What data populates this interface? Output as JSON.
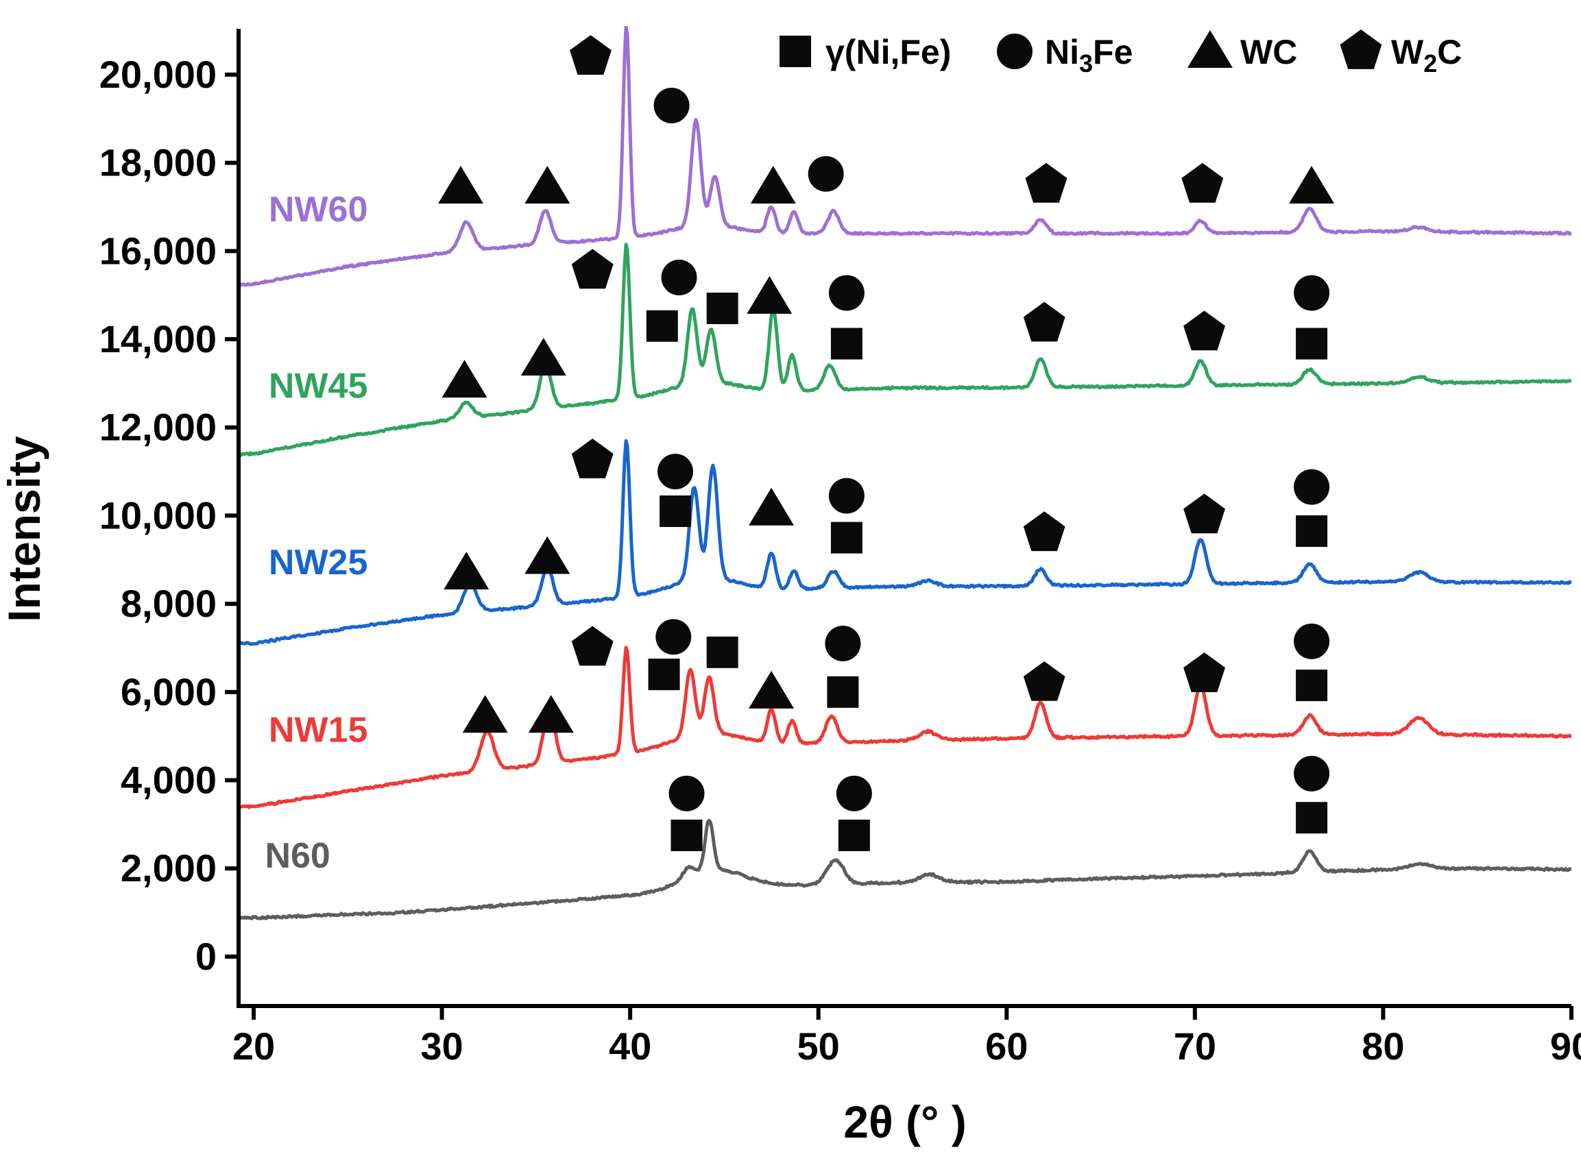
{
  "figure": {
    "background": "#ffffff",
    "axis_color": "#000000",
    "marker_color": "#0a0a0a"
  },
  "chart_data": {
    "type": "line",
    "title": "",
    "xlabel": "2θ (° )",
    "ylabel": "Intensity",
    "xlim": [
      19.2,
      90
    ],
    "ylim": [
      -1120,
      21040
    ],
    "grid": false,
    "legend_position": "top",
    "xticks": [
      20,
      30,
      40,
      50,
      60,
      70,
      80,
      90
    ],
    "xtick_labels": [
      "20",
      "30",
      "40",
      "50",
      "60",
      "70",
      "80",
      "90"
    ],
    "yticks": [
      0,
      2000,
      4000,
      6000,
      8000,
      10000,
      12000,
      14000,
      16000,
      18000,
      20000
    ],
    "ytick_labels": [
      "0",
      "2,000",
      "4,000",
      "6,000",
      "8,000",
      "10,000",
      "12,000",
      "14,000",
      "16,000",
      "18,000",
      "20,000"
    ],
    "legend": [
      {
        "symbol": "square",
        "pre": "γ(Ni,Fe)",
        "sub": "",
        "post": ""
      },
      {
        "symbol": "circle",
        "pre": "Ni",
        "sub": "3",
        "post": "Fe"
      },
      {
        "symbol": "triangle",
        "pre": "WC",
        "sub": "",
        "post": ""
      },
      {
        "symbol": "pentagon",
        "pre": "W",
        "sub": "2",
        "post": "C"
      }
    ],
    "series": [
      {
        "name": "N60",
        "color": "#5d5d5d",
        "label_xy": [
          20.6,
          2300
        ],
        "noise": 40,
        "baseline": [
          [
            20,
            880
          ],
          [
            28,
            1000
          ],
          [
            36,
            1250
          ],
          [
            42,
            1450
          ],
          [
            48,
            1600
          ],
          [
            54,
            1680
          ],
          [
            60,
            1700
          ],
          [
            66,
            1780
          ],
          [
            72,
            1850
          ],
          [
            78,
            1950
          ],
          [
            84,
            2000
          ],
          [
            90,
            1980
          ]
        ],
        "peaks": [
          [
            44.5,
            450,
            1.6
          ],
          [
            44.2,
            1150,
            0.22
          ],
          [
            43.1,
            250,
            0.3
          ],
          [
            50.9,
            550,
            0.45
          ],
          [
            55.9,
            180,
            0.5
          ],
          [
            76.1,
            480,
            0.35
          ],
          [
            81.9,
            120,
            0.6
          ]
        ]
      },
      {
        "name": "NW15",
        "color": "#ee3a35",
        "label_xy": [
          20.8,
          5150
        ],
        "noise": 40,
        "baseline": [
          [
            20,
            3400
          ],
          [
            25,
            3750
          ],
          [
            30,
            4100
          ],
          [
            35,
            4350
          ],
          [
            40,
            4600
          ],
          [
            45,
            4750
          ],
          [
            50,
            4850
          ],
          [
            55,
            4900
          ],
          [
            60,
            4950
          ],
          [
            70,
            5000
          ],
          [
            80,
            5050
          ],
          [
            90,
            5000
          ]
        ],
        "peaks": [
          [
            32.4,
            900,
            0.35
          ],
          [
            35.7,
            1250,
            0.3
          ],
          [
            44,
            350,
            1.8
          ],
          [
            39.8,
            2400,
            0.18
          ],
          [
            43.2,
            1500,
            0.25
          ],
          [
            44.2,
            1250,
            0.25
          ],
          [
            47.5,
            750,
            0.22
          ],
          [
            48.6,
            500,
            0.22
          ],
          [
            50.7,
            600,
            0.3
          ],
          [
            55.8,
            200,
            0.45
          ],
          [
            61.8,
            800,
            0.3
          ],
          [
            70.3,
            1150,
            0.3
          ],
          [
            76.1,
            430,
            0.35
          ],
          [
            81.9,
            380,
            0.5
          ]
        ]
      },
      {
        "name": "NW25",
        "color": "#1765cf",
        "label_xy": [
          20.8,
          8950
        ],
        "noise": 38,
        "baseline": [
          [
            20,
            7100
          ],
          [
            25,
            7450
          ],
          [
            30,
            7750
          ],
          [
            35,
            7950
          ],
          [
            40,
            8150
          ],
          [
            45,
            8250
          ],
          [
            50,
            8350
          ],
          [
            55,
            8400
          ],
          [
            60,
            8400
          ],
          [
            70,
            8450
          ],
          [
            80,
            8500
          ],
          [
            90,
            8480
          ]
        ],
        "peaks": [
          [
            31.5,
            650,
            0.35
          ],
          [
            35.6,
            850,
            0.3
          ],
          [
            44,
            350,
            1.8
          ],
          [
            39.8,
            3550,
            0.18
          ],
          [
            43.4,
            2100,
            0.25
          ],
          [
            44.4,
            2550,
            0.25
          ],
          [
            47.5,
            800,
            0.22
          ],
          [
            48.7,
            420,
            0.22
          ],
          [
            50.8,
            380,
            0.3
          ],
          [
            55.8,
            120,
            0.45
          ],
          [
            61.8,
            380,
            0.3
          ],
          [
            70.3,
            1000,
            0.3
          ],
          [
            76.1,
            420,
            0.35
          ],
          [
            81.9,
            220,
            0.5
          ]
        ]
      },
      {
        "name": "NW45",
        "color": "#2fa45e",
        "label_xy": [
          20.8,
          12950
        ],
        "noise": 38,
        "baseline": [
          [
            20,
            11400
          ],
          [
            25,
            11800
          ],
          [
            30,
            12150
          ],
          [
            35,
            12400
          ],
          [
            40,
            12650
          ],
          [
            45,
            12750
          ],
          [
            50,
            12850
          ],
          [
            55,
            12900
          ],
          [
            60,
            12900
          ],
          [
            70,
            12950
          ],
          [
            80,
            13000
          ],
          [
            90,
            13050
          ]
        ],
        "peaks": [
          [
            31.3,
            350,
            0.35
          ],
          [
            35.5,
            1000,
            0.3
          ],
          [
            44,
            300,
            1.8
          ],
          [
            39.8,
            3500,
            0.18
          ],
          [
            43.3,
            1700,
            0.25
          ],
          [
            44.3,
            1200,
            0.25
          ],
          [
            47.6,
            1850,
            0.22
          ],
          [
            48.6,
            800,
            0.22
          ],
          [
            50.6,
            550,
            0.3
          ],
          [
            61.8,
            650,
            0.3
          ],
          [
            70.3,
            550,
            0.3
          ],
          [
            76.1,
            330,
            0.35
          ],
          [
            81.9,
            130,
            0.5
          ]
        ]
      },
      {
        "name": "NW60",
        "color": "#9d6fd6",
        "label_xy": [
          20.8,
          16950
        ],
        "noise": 36,
        "baseline": [
          [
            20,
            15250
          ],
          [
            25,
            15650
          ],
          [
            30,
            15950
          ],
          [
            35,
            16150
          ],
          [
            40,
            16300
          ],
          [
            45,
            16350
          ],
          [
            50,
            16400
          ],
          [
            60,
            16400
          ],
          [
            70,
            16400
          ],
          [
            80,
            16450
          ],
          [
            90,
            16400
          ]
        ],
        "peaks": [
          [
            31.3,
            650,
            0.35
          ],
          [
            35.5,
            750,
            0.3
          ],
          [
            44,
            250,
            1.8
          ],
          [
            39.8,
            4800,
            0.17
          ],
          [
            43.5,
            2400,
            0.25
          ],
          [
            44.5,
            1100,
            0.25
          ],
          [
            47.5,
            600,
            0.22
          ],
          [
            48.7,
            500,
            0.22
          ],
          [
            50.8,
            500,
            0.3
          ],
          [
            61.8,
            320,
            0.3
          ],
          [
            70.3,
            280,
            0.3
          ],
          [
            76.1,
            520,
            0.35
          ],
          [
            81.9,
            100,
            0.5
          ]
        ]
      }
    ],
    "phase_markers": [
      [
        "triangle",
        31.0,
        17450
      ],
      [
        "triangle",
        35.6,
        17450
      ],
      [
        "pentagon",
        37.9,
        20400
      ],
      [
        "circle",
        42.2,
        19300
      ],
      [
        "triangle",
        47.6,
        17450
      ],
      [
        "circle",
        50.4,
        17750
      ],
      [
        "pentagon",
        62.1,
        17500
      ],
      [
        "pentagon",
        70.4,
        17500
      ],
      [
        "triangle",
        76.2,
        17450
      ],
      [
        "triangle",
        31.2,
        13050
      ],
      [
        "triangle",
        35.4,
        13550
      ],
      [
        "pentagon",
        38.0,
        15550
      ],
      [
        "square",
        41.7,
        14300
      ],
      [
        "circle",
        42.6,
        15400
      ],
      [
        "square",
        44.9,
        14700
      ],
      [
        "triangle",
        47.4,
        14950
      ],
      [
        "circle",
        51.5,
        15050
      ],
      [
        "square",
        51.5,
        13900
      ],
      [
        "pentagon",
        62.0,
        14350
      ],
      [
        "pentagon",
        70.5,
        14150
      ],
      [
        "circle",
        76.2,
        15050
      ],
      [
        "square",
        76.2,
        13900
      ],
      [
        "triangle",
        31.3,
        8700
      ],
      [
        "triangle",
        35.6,
        9050
      ],
      [
        "pentagon",
        38.0,
        11250
      ],
      [
        "circle",
        42.4,
        11000
      ],
      [
        "square",
        42.4,
        10100
      ],
      [
        "triangle",
        47.5,
        10150
      ],
      [
        "circle",
        51.5,
        10450
      ],
      [
        "square",
        51.5,
        9500
      ],
      [
        "pentagon",
        62.0,
        9600
      ],
      [
        "pentagon",
        70.5,
        10000
      ],
      [
        "circle",
        76.2,
        10650
      ],
      [
        "square",
        76.2,
        9650
      ],
      [
        "triangle",
        32.3,
        5450
      ],
      [
        "triangle",
        35.8,
        5450
      ],
      [
        "pentagon",
        38.0,
        7000
      ],
      [
        "square",
        41.8,
        6400
      ],
      [
        "circle",
        42.3,
        7250
      ],
      [
        "square",
        44.9,
        6900
      ],
      [
        "triangle",
        47.5,
        6000
      ],
      [
        "circle",
        51.3,
        7100
      ],
      [
        "square",
        51.3,
        6000
      ],
      [
        "pentagon",
        62.0,
        6200
      ],
      [
        "pentagon",
        70.5,
        6400
      ],
      [
        "circle",
        76.2,
        7150
      ],
      [
        "square",
        76.2,
        6150
      ],
      [
        "circle",
        43.0,
        3700
      ],
      [
        "square",
        43.0,
        2750
      ],
      [
        "circle",
        51.9,
        3700
      ],
      [
        "square",
        51.9,
        2750
      ],
      [
        "circle",
        76.2,
        4150
      ],
      [
        "square",
        76.2,
        3150
      ]
    ]
  }
}
